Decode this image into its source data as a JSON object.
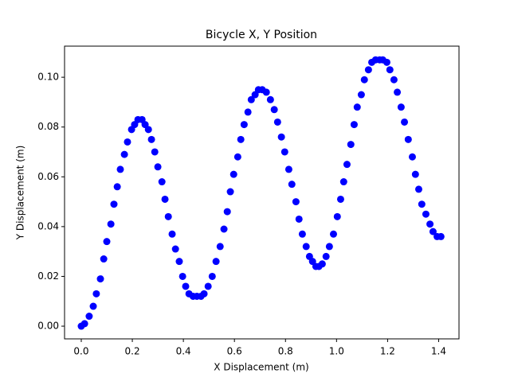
{
  "chart_data": {
    "type": "scatter",
    "title": "Bicycle X, Y Position",
    "x_label": "X Displacement (m)",
    "y_label": "Y Displacement (m)",
    "xlim": [
      -0.0655,
      1.4797
    ],
    "ylim": [
      -0.0051,
      0.1125
    ],
    "xticks": [
      {
        "value": 0,
        "label": "0.0"
      },
      0.2,
      0.4,
      0.6,
      0.8,
      {
        "value": 1,
        "label": "1.0"
      },
      1.2,
      1.4
    ],
    "yticks": [
      {
        "value": 0,
        "label": "0.00"
      },
      0.02,
      0.04,
      0.06,
      0.08,
      {
        "value": 0.1,
        "label": "0.10"
      }
    ],
    "grid": false,
    "series": [
      {
        "color": "#0000ff",
        "x": [
          0.0,
          0.013,
          0.031,
          0.047,
          0.059,
          0.075,
          0.088,
          0.1,
          0.116,
          0.128,
          0.141,
          0.153,
          0.169,
          0.181,
          0.197,
          0.209,
          0.222,
          0.238,
          0.25,
          0.263,
          0.275,
          0.288,
          0.3,
          0.316,
          0.328,
          0.341,
          0.356,
          0.369,
          0.384,
          0.397,
          0.409,
          0.422,
          0.438,
          0.453,
          0.469,
          0.481,
          0.497,
          0.513,
          0.528,
          0.544,
          0.559,
          0.572,
          0.584,
          0.597,
          0.613,
          0.625,
          0.638,
          0.653,
          0.666,
          0.681,
          0.694,
          0.709,
          0.725,
          0.741,
          0.756,
          0.769,
          0.784,
          0.797,
          0.813,
          0.825,
          0.841,
          0.853,
          0.866,
          0.881,
          0.894,
          0.906,
          0.919,
          0.931,
          0.944,
          0.959,
          0.972,
          0.988,
          1.003,
          1.016,
          1.028,
          1.041,
          1.056,
          1.069,
          1.081,
          1.097,
          1.109,
          1.125,
          1.138,
          1.153,
          1.169,
          1.181,
          1.197,
          1.209,
          1.225,
          1.238,
          1.253,
          1.266,
          1.281,
          1.297,
          1.309,
          1.322,
          1.334,
          1.35,
          1.366,
          1.378,
          1.394,
          1.409
        ],
        "values": [
          0.0,
          0.001,
          0.004,
          0.008,
          0.013,
          0.019,
          0.027,
          0.034,
          0.041,
          0.049,
          0.056,
          0.063,
          0.069,
          0.074,
          0.079,
          0.081,
          0.083,
          0.083,
          0.081,
          0.079,
          0.075,
          0.07,
          0.064,
          0.058,
          0.051,
          0.044,
          0.037,
          0.031,
          0.026,
          0.02,
          0.016,
          0.013,
          0.012,
          0.012,
          0.012,
          0.013,
          0.016,
          0.02,
          0.026,
          0.032,
          0.039,
          0.046,
          0.054,
          0.061,
          0.068,
          0.075,
          0.081,
          0.086,
          0.091,
          0.093,
          0.095,
          0.095,
          0.094,
          0.091,
          0.087,
          0.082,
          0.076,
          0.07,
          0.063,
          0.057,
          0.05,
          0.043,
          0.037,
          0.032,
          0.028,
          0.026,
          0.024,
          0.024,
          0.025,
          0.028,
          0.032,
          0.037,
          0.044,
          0.051,
          0.058,
          0.065,
          0.073,
          0.081,
          0.088,
          0.093,
          0.099,
          0.103,
          0.106,
          0.107,
          0.107,
          0.107,
          0.106,
          0.103,
          0.099,
          0.094,
          0.088,
          0.082,
          0.075,
          0.068,
          0.061,
          0.055,
          0.049,
          0.045,
          0.041,
          0.038,
          0.036,
          0.036
        ]
      }
    ]
  }
}
